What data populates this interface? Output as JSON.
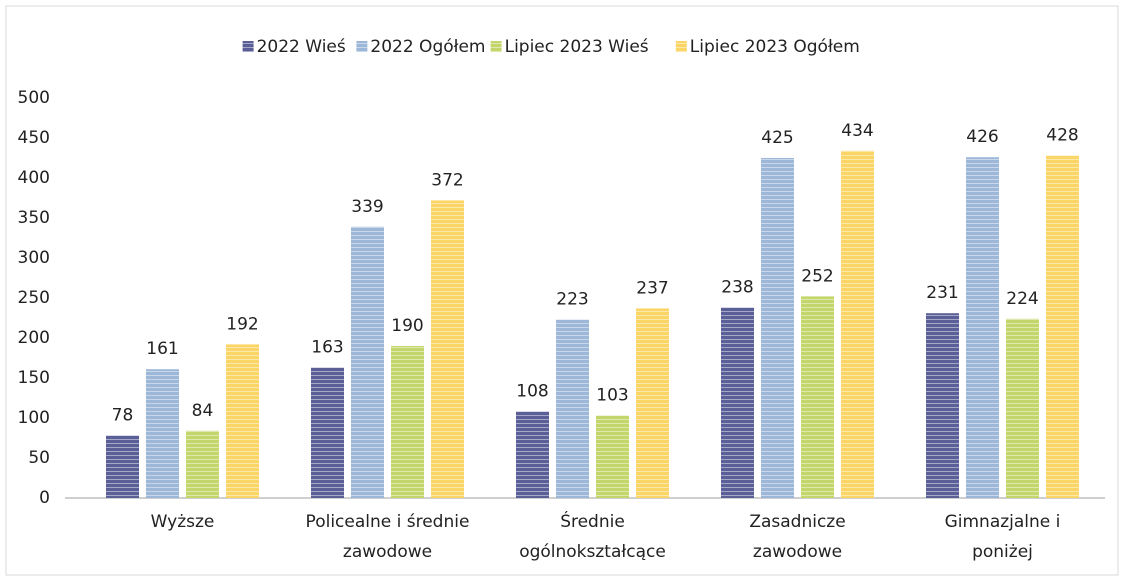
{
  "chart_data": {
    "type": "bar",
    "categories": [
      "Wyższe",
      "Policealne i średnie\nzawodowe",
      "Średnie\nogólnokształcące",
      "Zasadnicze\nzawodowe",
      "Gimnazjalne i\nponiżej"
    ],
    "series": [
      {
        "name": "2022 Wieś",
        "color": "#5b5f97",
        "values": [
          78,
          163,
          108,
          238,
          231
        ]
      },
      {
        "name": "2022 Ogółem",
        "color": "#9db7d8",
        "values": [
          161,
          339,
          223,
          425,
          426
        ]
      },
      {
        "name": "Lipiec 2023 Wieś",
        "color": "#c3d66b",
        "values": [
          84,
          190,
          103,
          252,
          224
        ]
      },
      {
        "name": "Lipiec 2023 Ogółem",
        "color": "#fbd566",
        "values": [
          192,
          372,
          237,
          434,
          428
        ]
      }
    ],
    "ylim": [
      0,
      500
    ],
    "yticks": [
      0,
      50,
      100,
      150,
      200,
      250,
      300,
      350,
      400,
      450,
      500
    ],
    "legend": "top"
  }
}
